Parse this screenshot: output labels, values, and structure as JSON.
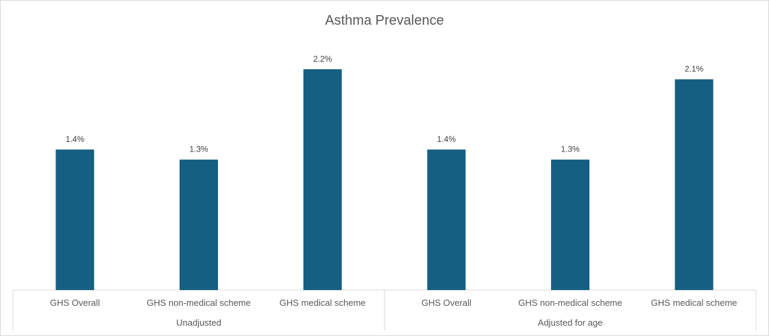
{
  "chart_data": {
    "type": "bar",
    "title": "Asthma Prevalence",
    "xlabel": "",
    "ylabel": "",
    "ylim": [
      0,
      2.5
    ],
    "value_format": "percent_1dp",
    "grid": false,
    "legend": "none",
    "bar_color": "#156082",
    "groups": [
      {
        "label": "Unadjusted",
        "categories": [
          "GHS Overall",
          "GHS non-medical scheme",
          "GHS medical scheme"
        ],
        "values": [
          1.4,
          1.3,
          2.2
        ],
        "labels": [
          "1.4%",
          "1.3%",
          "2.2%"
        ]
      },
      {
        "label": "Adjusted for age",
        "categories": [
          "GHS Overall",
          "GHS non-medical scheme",
          "GHS medical scheme"
        ],
        "values": [
          1.4,
          1.3,
          2.1
        ],
        "labels": [
          "1.4%",
          "1.3%",
          "2.1%"
        ]
      }
    ]
  }
}
